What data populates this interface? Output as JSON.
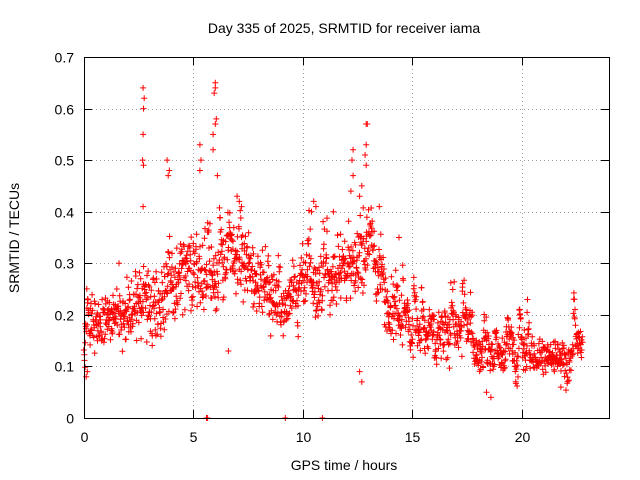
{
  "chart_data": {
    "type": "scatter",
    "title": "Day 335 of 2025, SRMTID for receiver iama",
    "xlabel": "GPS time / hours",
    "ylabel": "SRMTID / TECUs",
    "xlim": [
      0,
      24
    ],
    "ylim": [
      0,
      0.7
    ],
    "xticks": [
      0,
      5,
      10,
      15,
      20
    ],
    "xtick_labels": [
      "0",
      "5",
      "10",
      "15",
      "20"
    ],
    "yticks": [
      0,
      0.1,
      0.2,
      0.3,
      0.4,
      0.5,
      0.6,
      0.7
    ],
    "ytick_labels": [
      "0",
      "0.1",
      "0.2",
      "0.3",
      "0.4",
      "0.5",
      "0.6",
      "0.7"
    ],
    "grid": true,
    "marker": "+",
    "color": "#ff0000",
    "trend": [
      {
        "x": 0.0,
        "y": 0.16,
        "spread": 0.04
      },
      {
        "x": 1.0,
        "y": 0.2,
        "spread": 0.045
      },
      {
        "x": 2.0,
        "y": 0.21,
        "spread": 0.05
      },
      {
        "x": 3.0,
        "y": 0.22,
        "spread": 0.06
      },
      {
        "x": 4.0,
        "y": 0.25,
        "spread": 0.07
      },
      {
        "x": 5.0,
        "y": 0.29,
        "spread": 0.07
      },
      {
        "x": 6.0,
        "y": 0.27,
        "spread": 0.07
      },
      {
        "x": 7.0,
        "y": 0.3,
        "spread": 0.06
      },
      {
        "x": 8.0,
        "y": 0.27,
        "spread": 0.06
      },
      {
        "x": 9.0,
        "y": 0.22,
        "spread": 0.05
      },
      {
        "x": 10.0,
        "y": 0.26,
        "spread": 0.06
      },
      {
        "x": 11.0,
        "y": 0.25,
        "spread": 0.06
      },
      {
        "x": 12.0,
        "y": 0.29,
        "spread": 0.06
      },
      {
        "x": 13.0,
        "y": 0.29,
        "spread": 0.06
      },
      {
        "x": 14.0,
        "y": 0.23,
        "spread": 0.05
      },
      {
        "x": 15.0,
        "y": 0.16,
        "spread": 0.04
      },
      {
        "x": 16.0,
        "y": 0.15,
        "spread": 0.04
      },
      {
        "x": 17.0,
        "y": 0.16,
        "spread": 0.045
      },
      {
        "x": 18.0,
        "y": 0.13,
        "spread": 0.04
      },
      {
        "x": 19.0,
        "y": 0.11,
        "spread": 0.035
      },
      {
        "x": 20.0,
        "y": 0.11,
        "spread": 0.035
      },
      {
        "x": 21.0,
        "y": 0.12,
        "spread": 0.03
      },
      {
        "x": 22.0,
        "y": 0.12,
        "spread": 0.03
      },
      {
        "x": 22.8,
        "y": 0.13,
        "spread": 0.03
      }
    ],
    "points": [
      {
        "x": 2.7,
        "y": 0.64
      },
      {
        "x": 2.75,
        "y": 0.62
      },
      {
        "x": 2.72,
        "y": 0.6
      },
      {
        "x": 2.7,
        "y": 0.55
      },
      {
        "x": 2.68,
        "y": 0.5
      },
      {
        "x": 2.72,
        "y": 0.49
      },
      {
        "x": 2.7,
        "y": 0.41
      },
      {
        "x": 3.8,
        "y": 0.5
      },
      {
        "x": 3.9,
        "y": 0.48
      },
      {
        "x": 3.85,
        "y": 0.47
      },
      {
        "x": 5.3,
        "y": 0.48
      },
      {
        "x": 5.35,
        "y": 0.5
      },
      {
        "x": 5.3,
        "y": 0.53
      },
      {
        "x": 6.0,
        "y": 0.65
      },
      {
        "x": 6.0,
        "y": 0.64
      },
      {
        "x": 5.95,
        "y": 0.63
      },
      {
        "x": 6.05,
        "y": 0.58
      },
      {
        "x": 6.0,
        "y": 0.57
      },
      {
        "x": 5.9,
        "y": 0.55
      },
      {
        "x": 5.9,
        "y": 0.52
      },
      {
        "x": 6.1,
        "y": 0.47
      },
      {
        "x": 7.0,
        "y": 0.43
      },
      {
        "x": 7.1,
        "y": 0.42
      },
      {
        "x": 7.2,
        "y": 0.41
      },
      {
        "x": 12.9,
        "y": 0.57
      },
      {
        "x": 12.95,
        "y": 0.57
      },
      {
        "x": 12.9,
        "y": 0.53
      },
      {
        "x": 12.85,
        "y": 0.51
      },
      {
        "x": 12.9,
        "y": 0.49
      },
      {
        "x": 12.3,
        "y": 0.52
      },
      {
        "x": 12.25,
        "y": 0.5
      },
      {
        "x": 12.3,
        "y": 0.47
      },
      {
        "x": 12.2,
        "y": 0.44
      },
      {
        "x": 12.7,
        "y": 0.45
      },
      {
        "x": 12.6,
        "y": 0.43
      },
      {
        "x": 10.5,
        "y": 0.42
      },
      {
        "x": 10.6,
        "y": 0.41
      },
      {
        "x": 10.4,
        "y": 0.4
      },
      {
        "x": 11.4,
        "y": 0.4
      },
      {
        "x": 13.5,
        "y": 0.41
      },
      {
        "x": 14.4,
        "y": 0.35
      },
      {
        "x": 1.6,
        "y": 0.3
      },
      {
        "x": 0.1,
        "y": 0.08
      },
      {
        "x": 0.15,
        "y": 0.09
      },
      {
        "x": 12.7,
        "y": 0.07
      },
      {
        "x": 12.6,
        "y": 0.09
      },
      {
        "x": 6.6,
        "y": 0.13
      },
      {
        "x": 18.6,
        "y": 0.04
      },
      {
        "x": 18.4,
        "y": 0.05
      },
      {
        "x": 21.8,
        "y": 0.06
      },
      {
        "x": 5.6,
        "y": 0.0
      },
      {
        "x": 5.65,
        "y": 0.0
      },
      {
        "x": 9.2,
        "y": 0.0
      },
      {
        "x": 10.9,
        "y": 0.0
      }
    ]
  }
}
